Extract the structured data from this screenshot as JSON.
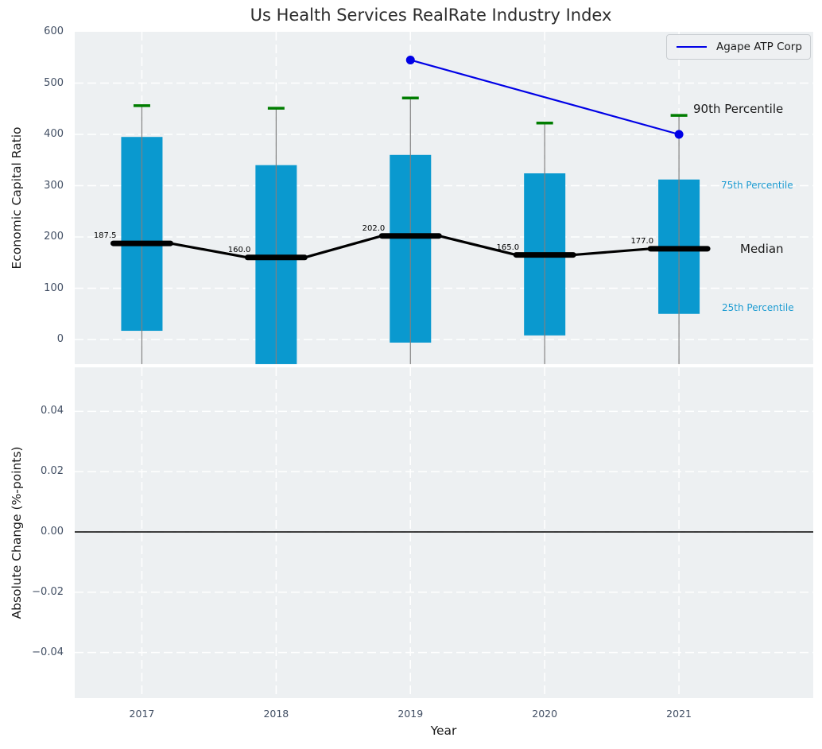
{
  "title": "Us Health Services RealRate Industry Index",
  "legend": {
    "label": "Agape ATP Corp"
  },
  "annotations": {
    "p90": "90th Percentile",
    "p75": "75th Percentile",
    "median": "Median",
    "p25": "25th Percentile"
  },
  "colors": {
    "bar": "#0a99cf",
    "p90_tick": "#007d00",
    "agape_line": "#0000e6",
    "median_line": "#000000",
    "whisker": "#808080",
    "axes_bg": "#edf0f2",
    "grid": "#ffffff",
    "tick_label": "#414e63",
    "annotation_percentile": "#1e9cd2",
    "zero_line": "#000000"
  },
  "chart_data": [
    {
      "type": "bar",
      "subplot": "top",
      "title": "Us Health Services RealRate Industry Index",
      "ylabel": "Economic Capital Ratio",
      "ylim": [
        -48,
        600
      ],
      "yticks": [
        0,
        100,
        200,
        300,
        400,
        500,
        600
      ],
      "categories": [
        2017,
        2018,
        2019,
        2020,
        2021
      ],
      "series": [
        {
          "name": "90th Percentile",
          "style": "green-tick",
          "values": [
            456,
            451,
            471,
            422,
            437
          ]
        },
        {
          "name": "75th Percentile",
          "style": "bar-top",
          "values": [
            395,
            340,
            360,
            324,
            312
          ]
        },
        {
          "name": "Median",
          "style": "thick-black-line",
          "values": [
            187.5,
            160.0,
            202.0,
            165.0,
            177.0
          ],
          "labels": [
            "187.5",
            "160.0",
            "202.0",
            "165.0",
            "177.0"
          ]
        },
        {
          "name": "25th Percentile",
          "style": "bar-bottom",
          "values": [
            17,
            -48,
            -6,
            8,
            50
          ]
        },
        {
          "name": "Agape ATP Corp",
          "style": "blue-line-markers",
          "x": [
            2019,
            2021
          ],
          "values": [
            545,
            400
          ]
        }
      ],
      "legend": [
        "Agape ATP Corp"
      ],
      "legend_position": "upper right",
      "grid": "white-dashed"
    },
    {
      "type": "line",
      "subplot": "bottom",
      "ylabel": "Absolute Change (%-points)",
      "xlabel": "Year",
      "ylim": [
        -0.055,
        0.055
      ],
      "yticks": [
        0.04,
        0.02,
        0.0,
        -0.02,
        -0.04
      ],
      "ytick_labels": [
        "0.04",
        "0.02",
        "0.00",
        "−0.02",
        "−0.04"
      ],
      "xticks": [
        2017,
        2018,
        2019,
        2020,
        2021
      ],
      "xtick_labels": [
        "2017",
        "2018",
        "2019",
        "2020",
        "2021"
      ],
      "series": [],
      "zero_line": true,
      "grid": "white-dashed"
    }
  ]
}
